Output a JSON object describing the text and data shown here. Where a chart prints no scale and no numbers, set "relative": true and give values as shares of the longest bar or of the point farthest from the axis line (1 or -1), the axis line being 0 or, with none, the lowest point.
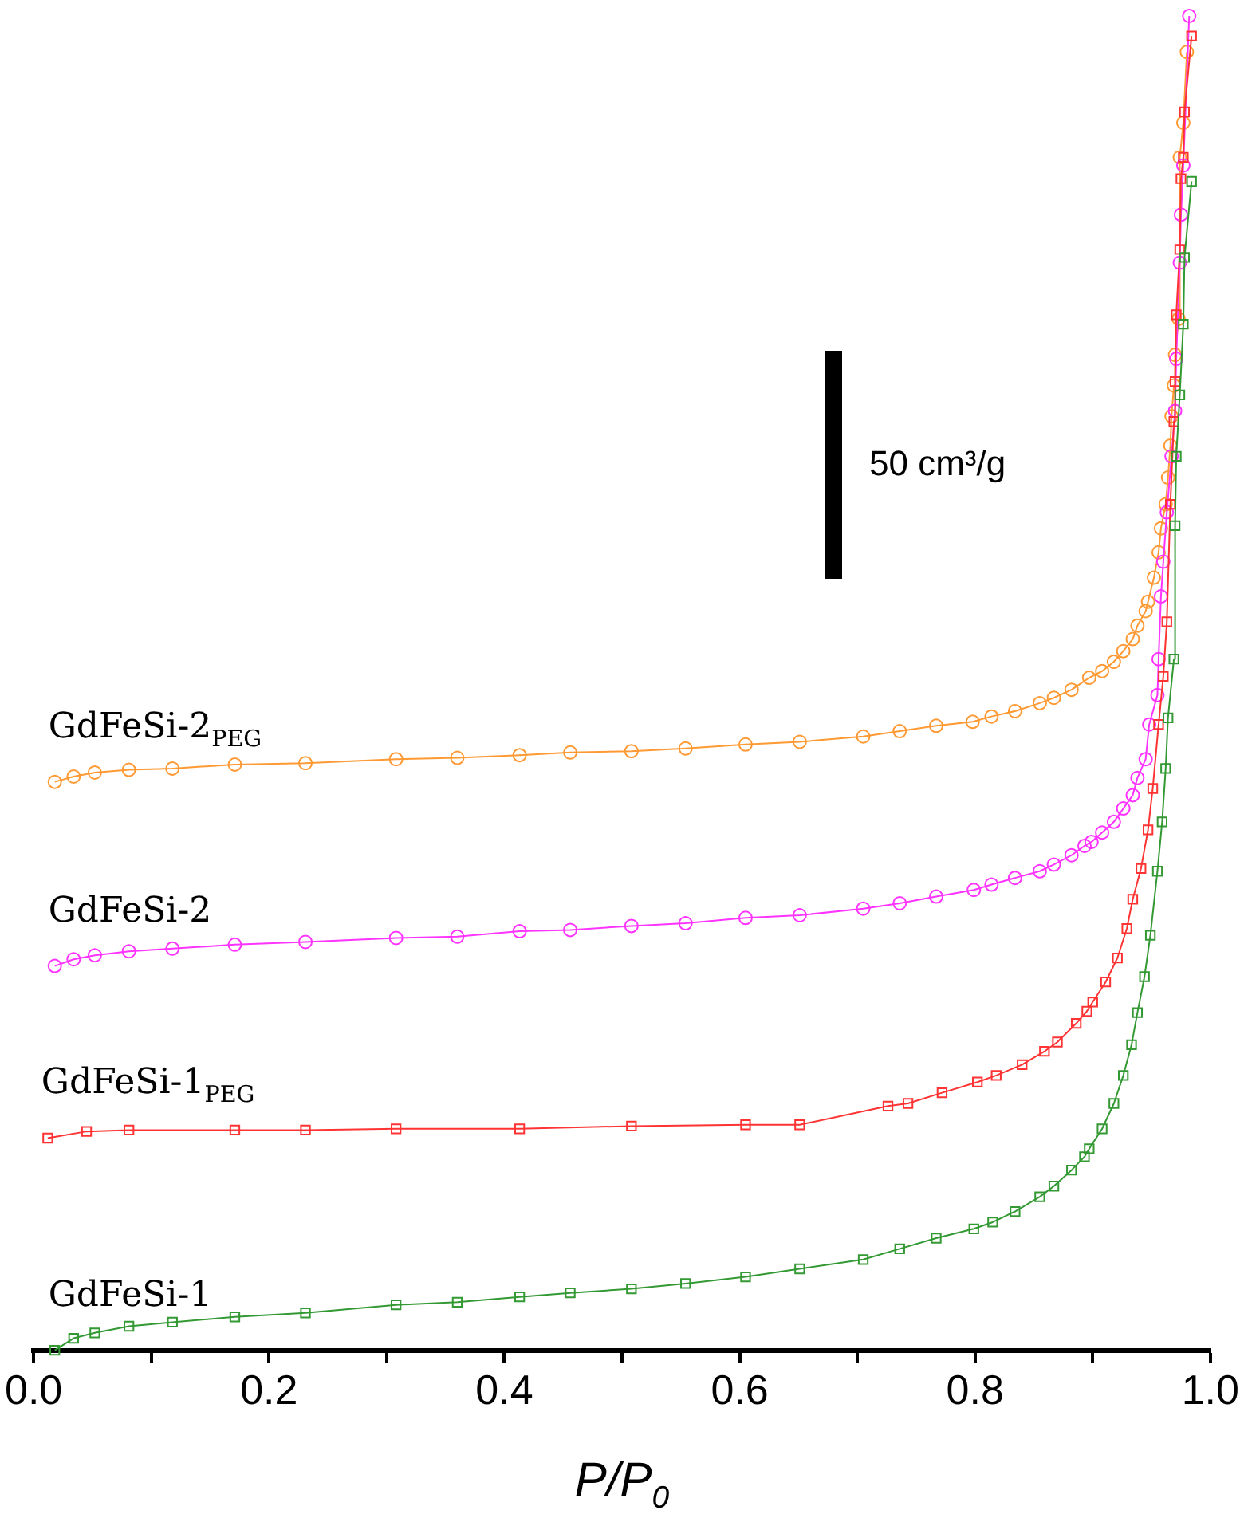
{
  "chart_data": {
    "type": "line",
    "relative": true,
    "xlabel": "P/P$_{0}$",
    "xlim": [
      0,
      1.0
    ],
    "xticks": [
      {
        "value": 0,
        "label": "0.0"
      },
      {
        "value": 0.1,
        "label": null
      },
      0.2,
      {
        "value": 0.3,
        "label": null
      },
      0.4,
      {
        "value": 0.5,
        "label": null
      },
      0.6,
      {
        "value": 0.7,
        "label": null
      },
      0.8,
      {
        "value": 0.9,
        "label": null
      },
      {
        "value": 1,
        "label": "1.0"
      }
    ],
    "grid": false,
    "legend": false,
    "tick_labels": "x",
    "line_style": "solid",
    "annotations": [
      "50 cm³/g"
    ],
    "series": [
      {
        "name": "GdFeSi-1",
        "color": "#339933",
        "marker": "square",
        "x": [
          0.018,
          0.034,
          0.052,
          0.081,
          0.118,
          0.171,
          0.231,
          0.308,
          0.36,
          0.413,
          0.456,
          0.508,
          0.554,
          0.605,
          0.651,
          0.705,
          0.736,
          0.767,
          0.799,
          0.815,
          0.834,
          0.855,
          0.867,
          0.882,
          0.893,
          0.897,
          0.908,
          0.918,
          0.926,
          0.933,
          0.938,
          0.944,
          0.949,
          0.955,
          0.959,
          0.962,
          0.964,
          0.969,
          0.97,
          0.971,
          0.974,
          0.977,
          0.978,
          0.984
        ],
        "values": [
          0,
          0.009,
          0.013,
          0.018,
          0.021,
          0.025,
          0.028,
          0.034,
          0.036,
          0.04,
          0.043,
          0.046,
          0.05,
          0.055,
          0.061,
          0.068,
          0.076,
          0.084,
          0.091,
          0.096,
          0.104,
          0.115,
          0.123,
          0.135,
          0.145,
          0.151,
          0.166,
          0.185,
          0.206,
          0.229,
          0.253,
          0.28,
          0.311,
          0.359,
          0.396,
          0.436,
          0.474,
          0.518,
          0.618,
          0.67,
          0.716,
          0.769,
          0.819,
          0.876
        ]
      },
      {
        "name": "GdFeSi-1$_{PEG}$",
        "color": "#ff3333",
        "marker": "square",
        "x": [
          0.012,
          0.045,
          0.081,
          0.171,
          0.231,
          0.308,
          0.413,
          0.508,
          0.605,
          0.651,
          0.726,
          0.743,
          0.772,
          0.802,
          0.818,
          0.84,
          0.859,
          0.87,
          0.886,
          0.895,
          0.9,
          0.911,
          0.921,
          0.929,
          0.934,
          0.941,
          0.947,
          0.951,
          0.956,
          0.96,
          0.963,
          0.966,
          0.969,
          0.97,
          0.971,
          0.974,
          0.975,
          0.977,
          0.978,
          0.984
        ],
        "values": [
          0.159,
          0.164,
          0.165,
          0.165,
          0.165,
          0.166,
          0.166,
          0.168,
          0.169,
          0.169,
          0.183,
          0.185,
          0.193,
          0.201,
          0.206,
          0.214,
          0.224,
          0.231,
          0.245,
          0.254,
          0.261,
          0.276,
          0.294,
          0.316,
          0.338,
          0.361,
          0.39,
          0.421,
          0.469,
          0.505,
          0.546,
          0.634,
          0.696,
          0.726,
          0.776,
          0.825,
          0.878,
          0.894,
          0.928,
          0.985
        ]
      },
      {
        "name": "GdFeSi-2",
        "color": "#ff33ff",
        "marker": "circle",
        "x": [
          0.018,
          0.034,
          0.052,
          0.081,
          0.118,
          0.171,
          0.231,
          0.308,
          0.36,
          0.413,
          0.456,
          0.508,
          0.554,
          0.605,
          0.651,
          0.705,
          0.736,
          0.767,
          0.799,
          0.814,
          0.834,
          0.855,
          0.867,
          0.882,
          0.893,
          0.899,
          0.908,
          0.918,
          0.926,
          0.934,
          0.938,
          0.945,
          0.948,
          0.955,
          0.956,
          0.958,
          0.96,
          0.963,
          0.967,
          0.97,
          0.971,
          0.974,
          0.975,
          0.977,
          0.982
        ],
        "values": [
          0.288,
          0.293,
          0.296,
          0.299,
          0.301,
          0.304,
          0.306,
          0.309,
          0.31,
          0.314,
          0.315,
          0.318,
          0.32,
          0.324,
          0.326,
          0.331,
          0.335,
          0.34,
          0.345,
          0.349,
          0.354,
          0.359,
          0.364,
          0.371,
          0.378,
          0.381,
          0.388,
          0.396,
          0.406,
          0.416,
          0.429,
          0.443,
          0.469,
          0.491,
          0.518,
          0.565,
          0.591,
          0.628,
          0.67,
          0.704,
          0.743,
          0.815,
          0.851,
          0.888,
          1
        ]
      },
      {
        "name": "GdFeSi-2$_{PEG}$",
        "color": "#ff9933",
        "marker": "circle",
        "x": [
          0.018,
          0.034,
          0.052,
          0.081,
          0.118,
          0.171,
          0.231,
          0.308,
          0.36,
          0.413,
          0.456,
          0.508,
          0.554,
          0.605,
          0.651,
          0.705,
          0.736,
          0.767,
          0.798,
          0.814,
          0.834,
          0.855,
          0.867,
          0.882,
          0.897,
          0.908,
          0.918,
          0.926,
          0.934,
          0.938,
          0.945,
          0.947,
          0.952,
          0.956,
          0.958,
          0.962,
          0.964,
          0.966,
          0.967,
          0.969,
          0.97,
          0.973,
          0.974,
          0.977,
          0.98
        ],
        "values": [
          0.426,
          0.43,
          0.433,
          0.435,
          0.436,
          0.439,
          0.44,
          0.443,
          0.444,
          0.446,
          0.448,
          0.449,
          0.451,
          0.454,
          0.456,
          0.46,
          0.464,
          0.468,
          0.471,
          0.475,
          0.479,
          0.485,
          0.489,
          0.495,
          0.504,
          0.509,
          0.516,
          0.524,
          0.533,
          0.543,
          0.554,
          0.561,
          0.579,
          0.598,
          0.616,
          0.634,
          0.654,
          0.678,
          0.7,
          0.723,
          0.746,
          0.773,
          0.894,
          0.92,
          0.973
        ]
      }
    ]
  }
}
